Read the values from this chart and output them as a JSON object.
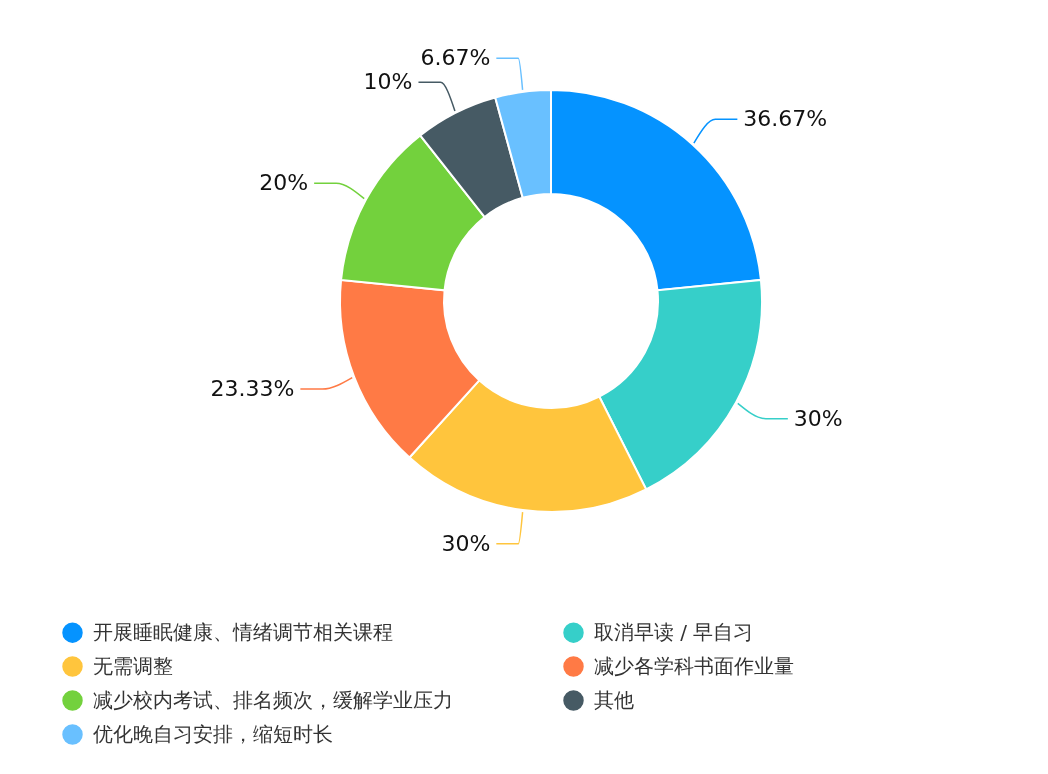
{
  "chart_data": {
    "type": "donut",
    "categories": [
      "开展睡眠健康、情绪调节相关课程",
      "取消早读 / 早自习",
      "无需调整",
      "减少各学科书面作业量",
      "减少校内考试、排名频次，缓解学业压力",
      "其他",
      "优化晚自习安排，缩短时长"
    ],
    "values": [
      36.67,
      30,
      30,
      23.33,
      20,
      10,
      6.67
    ],
    "colors": [
      "#0593ff",
      "#36cfc9",
      "#ffc53d",
      "#ff7a45",
      "#73d13d",
      "#465a64",
      "#69c0ff"
    ],
    "value_labels": [
      "36.67%",
      "30%",
      "30%",
      "23.33%",
      "20%",
      "10%",
      "6.67%"
    ],
    "legend": "bottom"
  }
}
